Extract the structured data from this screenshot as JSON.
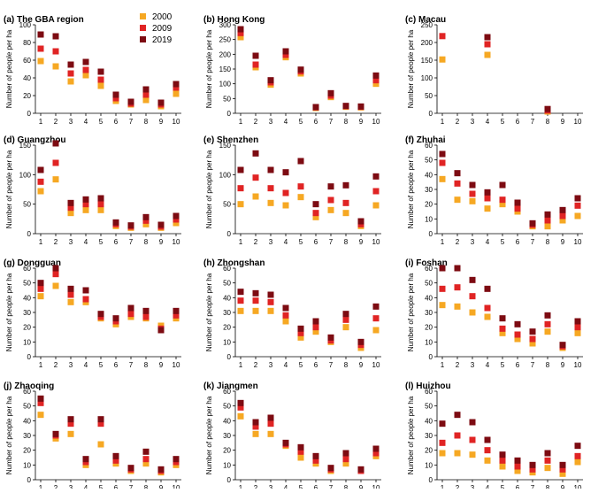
{
  "colors": {
    "2000": "#f6a823",
    "2009": "#e02424",
    "2019": "#7d0b12"
  },
  "legend": {
    "placement": "top-right of panel (a)",
    "entries": [
      "2000",
      "2009",
      "2019"
    ]
  },
  "chart_data": [
    {
      "type": "scatter",
      "title": "(a) The GBA region",
      "ylabel": "Number of people per ha",
      "ylim": [
        0,
        100
      ],
      "yticks": [
        0,
        20,
        40,
        60,
        80,
        100
      ],
      "categories": [
        "1",
        "2",
        "3",
        "4",
        "5",
        "6",
        "7",
        "8",
        "9",
        "10"
      ],
      "series": [
        {
          "name": "2000",
          "values": [
            59,
            53,
            36,
            43,
            31,
            14,
            10,
            15,
            8,
            22
          ]
        },
        {
          "name": "2009",
          "values": [
            73,
            70,
            45,
            49,
            38,
            17,
            11,
            21,
            10,
            29
          ]
        },
        {
          "name": "2019",
          "values": [
            89,
            87,
            55,
            58,
            47,
            21,
            13,
            27,
            12,
            33
          ]
        }
      ]
    },
    {
      "type": "scatter",
      "title": "(b) Hong Kong",
      "ylabel": "Number of people per ha",
      "ylim": [
        0,
        300
      ],
      "yticks": [
        0,
        50,
        100,
        150,
        200,
        250,
        300
      ],
      "categories": [
        "1",
        "2",
        "3",
        "4",
        "5",
        "6",
        "7",
        "8",
        "9",
        "10"
      ],
      "series": [
        {
          "name": "2000",
          "values": [
            258,
            156,
            97,
            190,
            135,
            18,
            55,
            22,
            20,
            100
          ]
        },
        {
          "name": "2009",
          "values": [
            272,
            165,
            105,
            198,
            142,
            20,
            60,
            24,
            22,
            112
          ]
        },
        {
          "name": "2019",
          "values": [
            285,
            195,
            112,
            210,
            148,
            21,
            68,
            25,
            23,
            128
          ]
        }
      ]
    },
    {
      "type": "scatter",
      "title": "(c) Macau",
      "ylabel": "Number of people per ha",
      "ylim": [
        0,
        250
      ],
      "yticks": [
        0,
        50,
        100,
        150,
        200,
        250
      ],
      "categories": [
        "1",
        "2",
        "3",
        "4",
        "5",
        "6",
        "7",
        "8",
        "9",
        "10"
      ],
      "series": [
        {
          "name": "2000",
          "values": [
            152,
            null,
            null,
            165,
            null,
            null,
            null,
            5,
            null,
            null
          ]
        },
        {
          "name": "2009",
          "values": [
            218,
            null,
            null,
            195,
            null,
            null,
            null,
            8,
            null,
            null
          ]
        },
        {
          "name": "2019",
          "values": [
            null,
            null,
            null,
            215,
            null,
            null,
            null,
            12,
            null,
            null
          ]
        }
      ]
    },
    {
      "type": "scatter",
      "title": "(d) Guangzhou",
      "ylabel": "Number of people per ha",
      "ylim": [
        0,
        150
      ],
      "yticks": [
        0,
        50,
        100,
        150
      ],
      "categories": [
        "1",
        "2",
        "3",
        "4",
        "5",
        "6",
        "7",
        "8",
        "9",
        "10"
      ],
      "series": [
        {
          "name": "2000",
          "values": [
            72,
            92,
            35,
            40,
            40,
            13,
            10,
            16,
            10,
            18
          ]
        },
        {
          "name": "2009",
          "values": [
            88,
            120,
            44,
            50,
            50,
            16,
            12,
            22,
            12,
            24
          ]
        },
        {
          "name": "2019",
          "values": [
            108,
            153,
            52,
            58,
            60,
            19,
            14,
            28,
            15,
            30
          ]
        }
      ]
    },
    {
      "type": "scatter",
      "title": "(e) Shenzhen",
      "ylabel": "Number of people per ha",
      "ylim": [
        0,
        150
      ],
      "yticks": [
        0,
        50,
        100,
        150
      ],
      "categories": [
        "1",
        "2",
        "3",
        "4",
        "5",
        "6",
        "7",
        "8",
        "9",
        "10"
      ],
      "series": [
        {
          "name": "2000",
          "values": [
            50,
            63,
            52,
            48,
            62,
            28,
            40,
            35,
            13,
            48
          ]
        },
        {
          "name": "2009",
          "values": [
            77,
            95,
            77,
            69,
            80,
            35,
            57,
            52,
            16,
            72
          ]
        },
        {
          "name": "2019",
          "values": [
            108,
            136,
            108,
            104,
            123,
            50,
            80,
            82,
            21,
            97
          ]
        }
      ]
    },
    {
      "type": "scatter",
      "title": "(f) Zhuhai",
      "ylabel": "Number of people per ha",
      "ylim": [
        0,
        60
      ],
      "yticks": [
        0,
        10,
        20,
        30,
        40,
        50,
        60
      ],
      "categories": [
        "1",
        "2",
        "3",
        "4",
        "5",
        "6",
        "7",
        "8",
        "9",
        "10"
      ],
      "series": [
        {
          "name": "2000",
          "values": [
            37,
            23,
            22,
            17,
            20,
            15,
            5,
            5,
            9,
            12
          ]
        },
        {
          "name": "2009",
          "values": [
            48,
            34,
            27,
            24,
            23,
            17,
            6,
            9,
            12,
            19
          ]
        },
        {
          "name": "2019",
          "values": [
            54,
            41,
            33,
            28,
            33,
            21,
            7,
            13,
            16,
            24
          ]
        }
      ]
    },
    {
      "type": "scatter",
      "title": "(g) Dongguan",
      "ylabel": "Number of people per ha",
      "ylim": [
        0,
        60
      ],
      "yticks": [
        0,
        10,
        20,
        30,
        40,
        50,
        60
      ],
      "categories": [
        "1",
        "2",
        "3",
        "4",
        "5",
        "6",
        "7",
        "8",
        "9",
        "10"
      ],
      "series": [
        {
          "name": "2000",
          "values": [
            41,
            48,
            37,
            37,
            26,
            22,
            27,
            26,
            21,
            26
          ]
        },
        {
          "name": "2009",
          "values": [
            46,
            56,
            42,
            39,
            27,
            24,
            29,
            27,
            19,
            28
          ]
        },
        {
          "name": "2019",
          "values": [
            50,
            60,
            46,
            45,
            29,
            26,
            33,
            31,
            18,
            31
          ]
        }
      ]
    },
    {
      "type": "scatter",
      "title": "(h) Zhongshan",
      "ylabel": "Number of people per ha",
      "ylim": [
        0,
        60
      ],
      "yticks": [
        0,
        10,
        20,
        30,
        40,
        50,
        60
      ],
      "categories": [
        "1",
        "2",
        "3",
        "4",
        "5",
        "6",
        "7",
        "8",
        "9",
        "10"
      ],
      "series": [
        {
          "name": "2000",
          "values": [
            31,
            31,
            31,
            24,
            13,
            17,
            10,
            20,
            6,
            18
          ]
        },
        {
          "name": "2009",
          "values": [
            38,
            38,
            37,
            28,
            16,
            20,
            11,
            25,
            8,
            26
          ]
        },
        {
          "name": "2019",
          "values": [
            44,
            43,
            42,
            33,
            19,
            24,
            13,
            29,
            10,
            34
          ]
        }
      ]
    },
    {
      "type": "scatter",
      "title": "(i) Foshan",
      "ylabel": "Number of people per ha",
      "ylim": [
        0,
        60
      ],
      "yticks": [
        0,
        10,
        20,
        30,
        40,
        50,
        60
      ],
      "categories": [
        "1",
        "2",
        "3",
        "4",
        "5",
        "6",
        "7",
        "8",
        "9",
        "10"
      ],
      "series": [
        {
          "name": "2000",
          "values": [
            35,
            34,
            30,
            27,
            16,
            12,
            9,
            17,
            6,
            16
          ]
        },
        {
          "name": "2009",
          "values": [
            46,
            47,
            41,
            33,
            19,
            15,
            12,
            22,
            7,
            20
          ]
        },
        {
          "name": "2019",
          "values": [
            60,
            60,
            52,
            46,
            26,
            22,
            17,
            28,
            8,
            24
          ]
        }
      ]
    },
    {
      "type": "scatter",
      "title": "(j) Zhaoqing",
      "ylabel": "Number of people per ha",
      "ylim": [
        0,
        60
      ],
      "yticks": [
        0,
        10,
        20,
        30,
        40,
        50,
        60
      ],
      "categories": [
        "1",
        "2",
        "3",
        "4",
        "5",
        "6",
        "7",
        "8",
        "9",
        "10"
      ],
      "series": [
        {
          "name": "2000",
          "values": [
            44,
            28,
            31,
            10,
            24,
            11,
            6,
            11,
            5,
            10
          ]
        },
        {
          "name": "2009",
          "values": [
            52,
            30,
            38,
            12,
            38,
            13,
            7,
            14,
            6,
            12
          ]
        },
        {
          "name": "2019",
          "values": [
            55,
            31,
            41,
            14,
            41,
            16,
            8,
            19,
            7,
            14
          ]
        }
      ]
    },
    {
      "type": "scatter",
      "title": "(k) Jiangmen",
      "ylabel": "Number of people per ha",
      "ylim": [
        0,
        60
      ],
      "yticks": [
        0,
        10,
        20,
        30,
        40,
        50,
        60
      ],
      "categories": [
        "1",
        "2",
        "3",
        "4",
        "5",
        "6",
        "7",
        "8",
        "9",
        "10"
      ],
      "series": [
        {
          "name": "2000",
          "values": [
            43,
            31,
            31,
            23,
            15,
            11,
            6,
            11,
            6,
            16
          ]
        },
        {
          "name": "2009",
          "values": [
            49,
            36,
            38,
            24,
            19,
            13,
            7,
            14,
            6,
            18
          ]
        },
        {
          "name": "2019",
          "values": [
            52,
            39,
            42,
            25,
            22,
            16,
            8,
            18,
            7,
            21
          ]
        }
      ]
    },
    {
      "type": "scatter",
      "title": "(l) Huizhou",
      "ylabel": "Number of people per ha",
      "ylim": [
        0,
        60
      ],
      "yticks": [
        0,
        10,
        20,
        30,
        40,
        50,
        60
      ],
      "categories": [
        "1",
        "2",
        "3",
        "4",
        "5",
        "6",
        "7",
        "8",
        "9",
        "10"
      ],
      "series": [
        {
          "name": "2000",
          "values": [
            18,
            18,
            17,
            13,
            9,
            6,
            5,
            8,
            4,
            12
          ]
        },
        {
          "name": "2009",
          "values": [
            25,
            30,
            27,
            20,
            13,
            9,
            7,
            13,
            7,
            16
          ]
        },
        {
          "name": "2019",
          "values": [
            38,
            44,
            39,
            27,
            17,
            13,
            10,
            18,
            10,
            23
          ]
        }
      ]
    }
  ]
}
